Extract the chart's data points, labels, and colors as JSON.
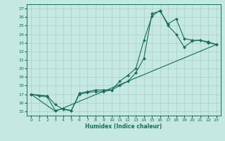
{
  "title": "",
  "xlabel": "Humidex (Indice chaleur)",
  "bg_color": "#c5e8e0",
  "grid_color": "#a8cfc8",
  "line_color": "#1a6b5a",
  "xlim": [
    -0.5,
    23.5
  ],
  "ylim": [
    14.5,
    27.5
  ],
  "xticks": [
    0,
    1,
    2,
    3,
    4,
    5,
    6,
    7,
    8,
    9,
    10,
    11,
    12,
    13,
    14,
    15,
    16,
    17,
    18,
    19,
    20,
    21,
    22,
    23
  ],
  "yticks": [
    15,
    16,
    17,
    18,
    19,
    20,
    21,
    22,
    23,
    24,
    25,
    26,
    27
  ],
  "series1_x": [
    0,
    1,
    2,
    3,
    4,
    5,
    6,
    7,
    8,
    9,
    10,
    11,
    12,
    13,
    14,
    15,
    16,
    17,
    18,
    19,
    20,
    21,
    22,
    23
  ],
  "series1_y": [
    17.0,
    16.8,
    16.7,
    15.1,
    15.3,
    15.1,
    17.0,
    17.2,
    17.3,
    17.3,
    17.5,
    18.0,
    18.5,
    19.5,
    21.2,
    26.4,
    26.7,
    25.2,
    25.8,
    23.5,
    23.3,
    23.3,
    23.0,
    22.8
  ],
  "series2_x": [
    0,
    2,
    3,
    4,
    5,
    6,
    7,
    8,
    9,
    10,
    11,
    12,
    13,
    14,
    15,
    16,
    17,
    18,
    19,
    20,
    21,
    22,
    23
  ],
  "series2_y": [
    17.0,
    16.8,
    15.8,
    15.2,
    15.1,
    17.1,
    17.3,
    17.5,
    17.5,
    17.5,
    18.5,
    19.2,
    20.0,
    23.3,
    26.1,
    26.8,
    25.0,
    24.0,
    22.5,
    23.2,
    23.3,
    23.1,
    22.8
  ],
  "series3_x": [
    0,
    3,
    23
  ],
  "series3_y": [
    17.0,
    15.0,
    22.8
  ]
}
